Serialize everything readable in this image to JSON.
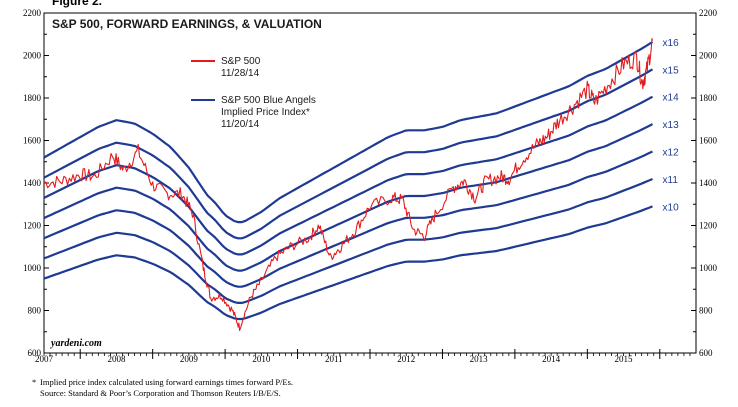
{
  "figure_label": "Figure 2.",
  "chart_data": {
    "type": "line",
    "title": "S&P 500, FORWARD EARNINGS, & VALUATION",
    "ylim": [
      600,
      2200
    ],
    "yticks": [
      600,
      800,
      1000,
      1200,
      1400,
      1600,
      1800,
      2000,
      2200
    ],
    "x_range": [
      2006.5,
      2015.5
    ],
    "x_tick_labels": [
      "2007",
      "2008",
      "2009",
      "2010",
      "2011",
      "2012",
      "2013",
      "2014",
      "2015"
    ],
    "legend": [
      {
        "name": "S&P 500",
        "date": "11/28/14",
        "color": "#e31b1b"
      },
      {
        "name": "S&P 500 Blue Angels",
        "name2": "Implied Price Index*",
        "date": "11/20/14",
        "color": "#1f3a93"
      }
    ],
    "forward_earnings": {
      "x": [
        2006.5,
        2006.75,
        2007.0,
        2007.25,
        2007.5,
        2007.75,
        2008.0,
        2008.25,
        2008.5,
        2008.75,
        2008.85,
        2009.0,
        2009.15,
        2009.25,
        2009.5,
        2009.75,
        2010.0,
        2010.25,
        2010.5,
        2010.75,
        2011.0,
        2011.25,
        2011.5,
        2011.75,
        2012.0,
        2012.25,
        2012.5,
        2012.75,
        2013.0,
        2013.25,
        2013.5,
        2013.75,
        2014.0,
        2014.25,
        2014.5,
        2014.75,
        2014.9
      ],
      "values": [
        95,
        98,
        101,
        104,
        106,
        105,
        102,
        98,
        92,
        84,
        82,
        78,
        76,
        76,
        79,
        83,
        86,
        89,
        92,
        95,
        98,
        101,
        103,
        103,
        104,
        106,
        107,
        108,
        110,
        112,
        114,
        116,
        119,
        121,
        124,
        127,
        129
      ]
    },
    "series": [
      {
        "name": "x10",
        "multiple": 10
      },
      {
        "name": "x11",
        "multiple": 11
      },
      {
        "name": "x12",
        "multiple": 12
      },
      {
        "name": "x13",
        "multiple": 13
      },
      {
        "name": "x14",
        "multiple": 14
      },
      {
        "name": "x15",
        "multiple": 15
      },
      {
        "name": "x16",
        "multiple": 16
      }
    ],
    "sp500": {
      "name": "S&P 500",
      "x": [
        2006.5,
        2006.75,
        2007.0,
        2007.2,
        2007.45,
        2007.6,
        2007.8,
        2008.0,
        2008.2,
        2008.4,
        2008.55,
        2008.7,
        2008.8,
        2008.95,
        2009.1,
        2009.2,
        2009.35,
        2009.5,
        2009.7,
        2009.9,
        2010.15,
        2010.3,
        2010.45,
        2010.6,
        2010.8,
        2011.0,
        2011.3,
        2011.45,
        2011.6,
        2011.75,
        2011.9,
        2012.15,
        2012.3,
        2012.45,
        2012.6,
        2012.8,
        2012.92,
        2013.1,
        2013.3,
        2013.45,
        2013.6,
        2013.8,
        2014.0,
        2014.1,
        2014.3,
        2014.5,
        2014.68,
        2014.76,
        2014.82,
        2014.9
      ],
      "values": [
        1400,
        1410,
        1440,
        1430,
        1530,
        1460,
        1550,
        1390,
        1350,
        1350,
        1260,
        1000,
        860,
        870,
        800,
        720,
        860,
        940,
        1050,
        1100,
        1140,
        1200,
        1050,
        1100,
        1180,
        1290,
        1330,
        1320,
        1180,
        1150,
        1250,
        1380,
        1410,
        1330,
        1410,
        1430,
        1420,
        1510,
        1580,
        1620,
        1690,
        1760,
        1840,
        1780,
        1870,
        1960,
        1990,
        1870,
        1930,
        2070
      ]
    },
    "watermark": "yardeni.com",
    "footnote": "Implied price index calculated using forward earnings times forward P/Es.",
    "footnote_marker": "*",
    "source": "Source: Standard & Poor’s Corporation and Thomson Reuters I/B/E/S."
  }
}
